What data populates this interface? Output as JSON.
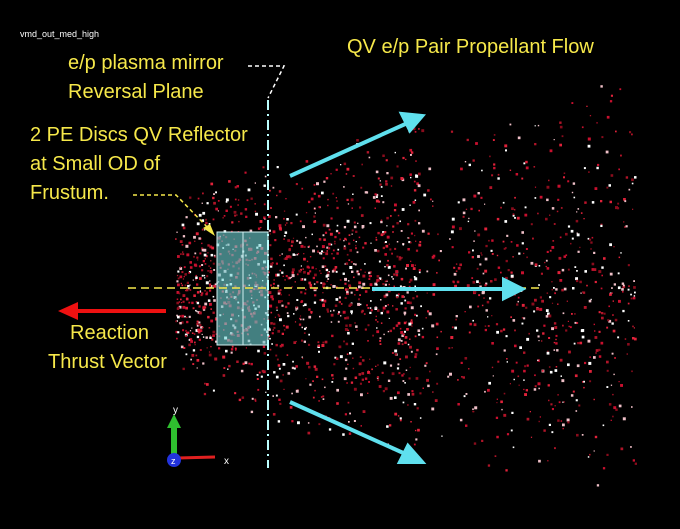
{
  "window_label": "vmd_out_med_high",
  "annotations": {
    "mirror": [
      "e/p plasma mirror",
      "Reversal Plane"
    ],
    "flow": [
      "QV e/p Pair Propellant Flow"
    ],
    "reflector": [
      "2 PE Discs QV Reflector",
      "at Small OD of",
      "Frustum."
    ],
    "thrust": [
      "Reaction",
      "Thrust Vector"
    ]
  },
  "axes": {
    "y": "y",
    "z": "z",
    "x": "x"
  }
}
